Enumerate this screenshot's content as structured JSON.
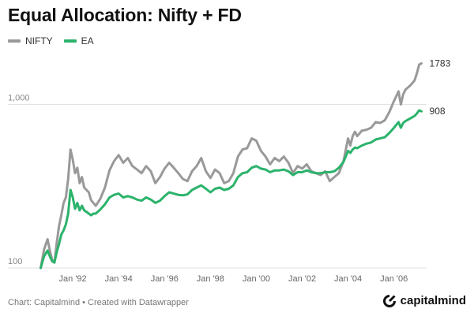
{
  "title": "Equal Allocation: Nifty + FD",
  "legend": [
    {
      "name": "NIFTY",
      "color": "#999999"
    },
    {
      "name": "EA",
      "color": "#2bb36b"
    }
  ],
  "footer": "Chart: Capitalmind • Created with Datawrapper",
  "brand": {
    "name": "capitalmind",
    "icon": "capitalmind-logo-icon"
  },
  "chart_data": {
    "type": "line",
    "title": "Equal Allocation: Nifty + FD",
    "xlabel": "",
    "ylabel": "",
    "y_scale": "log",
    "ylim": [
      100,
      2000
    ],
    "xlim": [
      1990.55,
      2007.25
    ],
    "grid": true,
    "legend_position": "top-left",
    "y_ticks": [
      {
        "value": 100,
        "label": "100"
      },
      {
        "value": 1000,
        "label": "1,000"
      }
    ],
    "x_ticks": [
      {
        "value": 1992,
        "label": "Jan '92"
      },
      {
        "value": 1994,
        "label": "Jan '94"
      },
      {
        "value": 1996,
        "label": "Jan '96"
      },
      {
        "value": 1998,
        "label": "Jan '98"
      },
      {
        "value": 2000,
        "label": "Jan '00"
      },
      {
        "value": 2002,
        "label": "Jan '02"
      },
      {
        "value": 2004,
        "label": "Jan '04"
      },
      {
        "value": 2006,
        "label": "Jan '06"
      }
    ],
    "series": [
      {
        "name": "NIFTY",
        "color": "#999999",
        "end_label": "1783",
        "x": [
          1990.6,
          1990.75,
          1990.9,
          1991.0,
          1991.1,
          1991.2,
          1991.3,
          1991.4,
          1991.5,
          1991.6,
          1991.7,
          1991.8,
          1991.9,
          1992.0,
          1992.1,
          1992.2,
          1992.3,
          1992.4,
          1992.5,
          1992.6,
          1992.7,
          1992.8,
          1992.9,
          1993.0,
          1993.2,
          1993.4,
          1993.6,
          1993.8,
          1994.0,
          1994.2,
          1994.4,
          1994.6,
          1994.8,
          1995.0,
          1995.2,
          1995.4,
          1995.6,
          1995.8,
          1996.0,
          1996.2,
          1996.4,
          1996.6,
          1996.8,
          1997.0,
          1997.2,
          1997.4,
          1997.6,
          1997.8,
          1998.0,
          1998.2,
          1998.4,
          1998.6,
          1998.8,
          1999.0,
          1999.2,
          1999.4,
          1999.6,
          1999.8,
          2000.0,
          2000.2,
          2000.4,
          2000.6,
          2000.8,
          2001.0,
          2001.2,
          2001.4,
          2001.6,
          2001.8,
          2002.0,
          2002.2,
          2002.4,
          2002.6,
          2002.8,
          2003.0,
          2003.2,
          2003.4,
          2003.6,
          2003.8,
          2004.0,
          2004.1,
          2004.2,
          2004.3,
          2004.4,
          2004.6,
          2004.8,
          2005.0,
          2005.2,
          2005.4,
          2005.6,
          2005.8,
          2006.0,
          2006.2,
          2006.3,
          2006.4,
          2006.5,
          2006.7,
          2006.9,
          2007.0,
          2007.1,
          2007.2
        ],
        "values": [
          100,
          130,
          150,
          128,
          112,
          108,
          142,
          180,
          210,
          250,
          270,
          350,
          530,
          460,
          380,
          410,
          330,
          360,
          310,
          300,
          290,
          260,
          250,
          240,
          265,
          310,
          395,
          450,
          490,
          440,
          470,
          420,
          400,
          380,
          420,
          390,
          330,
          360,
          405,
          440,
          410,
          380,
          350,
          340,
          390,
          420,
          470,
          390,
          355,
          400,
          380,
          330,
          340,
          380,
          480,
          530,
          540,
          620,
          600,
          520,
          480,
          430,
          470,
          450,
          480,
          440,
          380,
          420,
          405,
          430,
          390,
          380,
          370,
          390,
          340,
          360,
          380,
          450,
          620,
          560,
          640,
          680,
          640,
          690,
          700,
          720,
          780,
          770,
          800,
          900,
          1050,
          1200,
          1000,
          1150,
          1230,
          1300,
          1400,
          1550,
          1750,
          1783
        ]
      },
      {
        "name": "EA",
        "color": "#2bb36b",
        "end_label": "908",
        "x": [
          1990.6,
          1990.75,
          1990.9,
          1991.0,
          1991.1,
          1991.2,
          1991.3,
          1991.4,
          1991.5,
          1991.6,
          1991.7,
          1991.8,
          1991.9,
          1992.0,
          1992.1,
          1992.2,
          1992.3,
          1992.4,
          1992.5,
          1992.6,
          1992.7,
          1992.8,
          1992.9,
          1993.0,
          1993.2,
          1993.4,
          1993.6,
          1993.8,
          1994.0,
          1994.2,
          1994.4,
          1994.6,
          1994.8,
          1995.0,
          1995.2,
          1995.4,
          1995.6,
          1995.8,
          1996.0,
          1996.2,
          1996.4,
          1996.6,
          1996.8,
          1997.0,
          1997.2,
          1997.4,
          1997.6,
          1997.8,
          1998.0,
          1998.2,
          1998.4,
          1998.6,
          1998.8,
          1999.0,
          1999.2,
          1999.4,
          1999.6,
          1999.8,
          2000.0,
          2000.2,
          2000.4,
          2000.6,
          2000.8,
          2001.0,
          2001.2,
          2001.4,
          2001.6,
          2001.8,
          2002.0,
          2002.2,
          2002.4,
          2002.6,
          2002.8,
          2003.0,
          2003.2,
          2003.4,
          2003.6,
          2003.8,
          2004.0,
          2004.1,
          2004.2,
          2004.3,
          2004.4,
          2004.6,
          2004.8,
          2005.0,
          2005.2,
          2005.4,
          2005.6,
          2005.8,
          2006.0,
          2006.2,
          2006.3,
          2006.4,
          2006.5,
          2006.7,
          2006.9,
          2007.0,
          2007.1,
          2007.2
        ],
        "values": [
          100,
          118,
          128,
          118,
          110,
          108,
          125,
          140,
          160,
          170,
          185,
          215,
          300,
          270,
          230,
          250,
          225,
          240,
          225,
          220,
          215,
          210,
          215,
          215,
          228,
          245,
          270,
          280,
          285,
          270,
          275,
          270,
          262,
          258,
          270,
          262,
          250,
          258,
          275,
          290,
          285,
          280,
          278,
          282,
          300,
          310,
          320,
          305,
          290,
          305,
          310,
          300,
          305,
          320,
          360,
          380,
          385,
          410,
          420,
          405,
          400,
          385,
          395,
          395,
          400,
          390,
          370,
          385,
          385,
          395,
          385,
          380,
          380,
          385,
          385,
          390,
          410,
          445,
          520,
          505,
          530,
          545,
          540,
          560,
          575,
          585,
          610,
          620,
          630,
          670,
          720,
          780,
          720,
          770,
          790,
          820,
          850,
          880,
          920,
          908
        ]
      }
    ]
  }
}
